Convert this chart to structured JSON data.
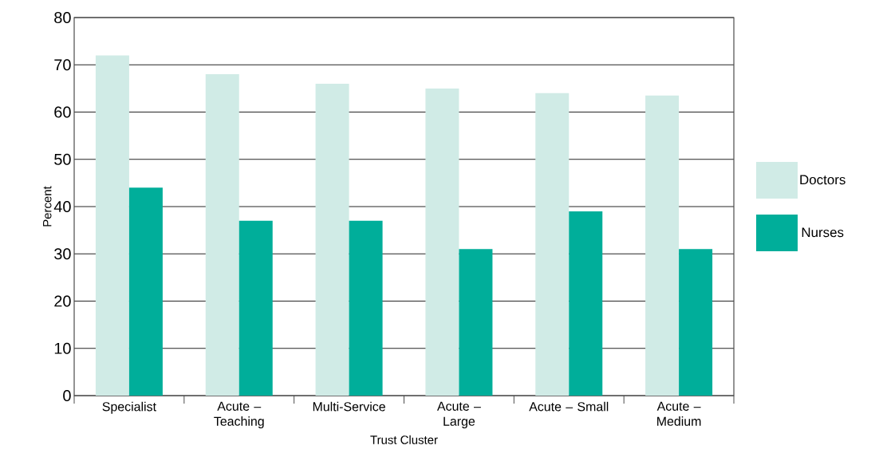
{
  "chart_data": {
    "type": "bar",
    "xlabel": "Trust Cluster",
    "ylabel": "Percent",
    "categories": [
      "Specialist",
      "Acute – Teaching",
      "Multi-Service",
      "Acute – Large",
      "Acute – Small",
      "Acute – Medium"
    ],
    "series": [
      {
        "name": "Doctors",
        "color": "#d0ebe6",
        "values": [
          72,
          68,
          66,
          65,
          64,
          63.5
        ]
      },
      {
        "name": "Nurses",
        "color": "#00ae9a",
        "values": [
          44,
          37,
          37,
          31,
          39,
          31
        ]
      }
    ],
    "ylim": [
      0,
      80
    ],
    "yticks": [
      0,
      10,
      20,
      30,
      40,
      50,
      60,
      70,
      80
    ],
    "grid": "y",
    "legend": "right"
  }
}
